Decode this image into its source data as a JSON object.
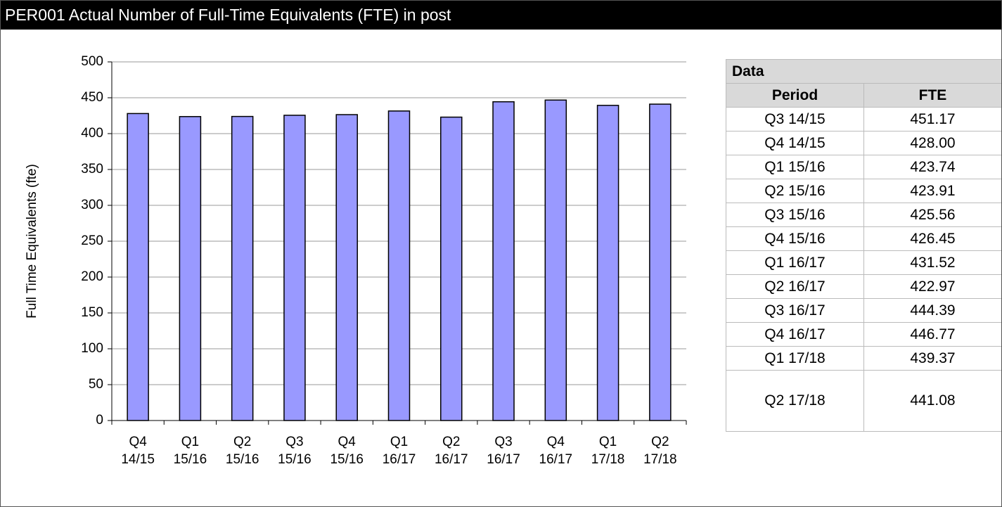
{
  "header": {
    "title": "PER001 Actual Number of Full-Time Equivalents (FTE) in post"
  },
  "chart_data": {
    "type": "bar",
    "y_label": "Full Time Equivalents (fte)",
    "categories": [
      "Q4 14/15",
      "Q1 15/16",
      "Q2 15/16",
      "Q3 15/16",
      "Q4 15/16",
      "Q1 16/17",
      "Q2 16/17",
      "Q3 16/17",
      "Q4 16/17",
      "Q1 17/18",
      "Q2 17/18"
    ],
    "values": [
      428.0,
      423.74,
      423.91,
      425.56,
      426.45,
      431.52,
      422.97,
      444.39,
      446.77,
      439.37,
      441.08
    ],
    "color": "#9999ff",
    "ylim": [
      0,
      500
    ],
    "yticks": [
      0,
      50,
      100,
      150,
      200,
      250,
      300,
      350,
      400,
      450,
      500
    ],
    "grid": true
  },
  "table": {
    "title": "Data",
    "columns": [
      "Period",
      "FTE"
    ],
    "rows": [
      [
        "Q3 14/15",
        "451.17"
      ],
      [
        "Q4 14/15",
        "428.00"
      ],
      [
        "Q1 15/16",
        "423.74"
      ],
      [
        "Q2 15/16",
        "423.91"
      ],
      [
        "Q3 15/16",
        "425.56"
      ],
      [
        "Q4 15/16",
        "426.45"
      ],
      [
        "Q1 16/17",
        "431.52"
      ],
      [
        "Q2 16/17",
        "422.97"
      ],
      [
        "Q3 16/17",
        "444.39"
      ],
      [
        "Q4 16/17",
        "446.77"
      ],
      [
        "Q1 17/18",
        "439.37"
      ],
      [
        "Q2 17/18",
        "441.08"
      ]
    ]
  }
}
